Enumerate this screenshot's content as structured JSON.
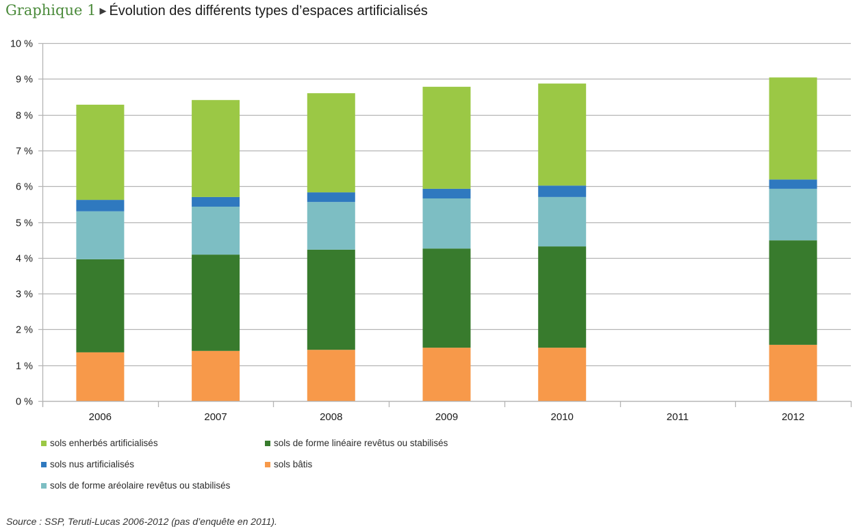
{
  "header": {
    "lead": "Graphique 1",
    "arrow_icon": "▶",
    "title": "Évolution des différents types d’espaces artificialisés"
  },
  "source": "Source : SSP, Teruti-Lucas 2006-2012 (pas d’enquête en 2011).",
  "chart_data": {
    "type": "bar",
    "stacked": true,
    "title": "Évolution des différents types d’espaces artificialisés",
    "xlabel": "",
    "ylabel": "",
    "categories": [
      "2006",
      "2007",
      "2008",
      "2009",
      "2010",
      "2011",
      "2012"
    ],
    "ylim": [
      0,
      10
    ],
    "yticks": [
      0,
      1,
      2,
      3,
      4,
      5,
      6,
      7,
      8,
      9,
      10
    ],
    "ytick_labels": [
      "0 %",
      "1 %",
      "2 %",
      "3 %",
      "4 %",
      "5 %",
      "6 %",
      "7 %",
      "8 %",
      "9 %",
      "10 %"
    ],
    "grid": true,
    "legend_position": "bottom",
    "series": [
      {
        "name": "sols bâtis",
        "color": "#f7994a",
        "values": [
          1.36,
          1.4,
          1.43,
          1.49,
          1.49,
          null,
          1.57
        ]
      },
      {
        "name": "sols de forme linéaire revêtus ou stabilisés",
        "color": "#387b2d",
        "values": [
          2.6,
          2.69,
          2.8,
          2.77,
          2.83,
          null,
          2.92
        ]
      },
      {
        "name": "sols de forme aréolaire revêtus ou stabilisés",
        "color": "#7dbec3",
        "values": [
          1.34,
          1.34,
          1.33,
          1.4,
          1.38,
          null,
          1.44
        ]
      },
      {
        "name": "sols nus artificialisés",
        "color": "#2f79bf",
        "values": [
          0.32,
          0.27,
          0.27,
          0.27,
          0.32,
          null,
          0.26
        ]
      },
      {
        "name": "sols enherbés artificialisés",
        "color": "#9bc845",
        "values": [
          2.66,
          2.71,
          2.77,
          2.85,
          2.85,
          null,
          2.85
        ]
      }
    ],
    "legend_order": [
      "sols enherbés artificialisés",
      "sols de forme linéaire revêtus ou stabilisés",
      "sols nus artificialisés",
      "sols bâtis",
      "sols de forme aréolaire revêtus ou stabilisés"
    ],
    "annotations": [
      "pas d’enquête en 2011"
    ]
  }
}
